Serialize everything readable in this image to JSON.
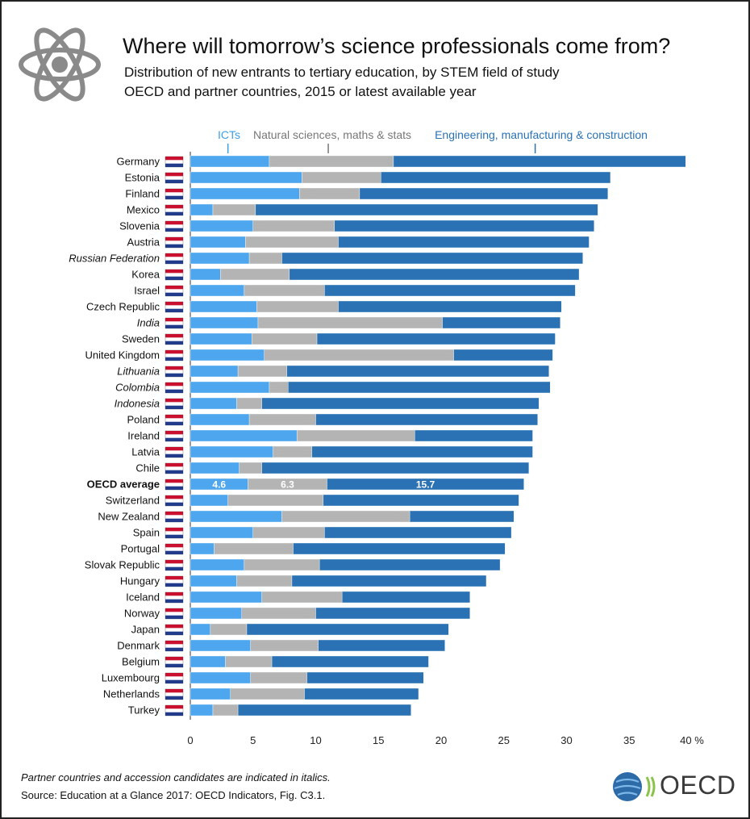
{
  "title": "Where will tomorrow’s science professionals come from?",
  "subtitle1": "Distribution of new entrants to tertiary education, by STEM field of study",
  "subtitle2": "OECD and partner countries, 2015 or latest available year",
  "footnote": "Partner countries and accession candidates are indicated in italics.",
  "source": "Source: Education at a Glance 2017: OECD Indicators, Fig. C3.1.",
  "logo_text": "OECD",
  "colors": {
    "ict": "#4da6ee",
    "nat": "#b4b4b4",
    "eng": "#2a72b4",
    "ict_label": "#3d9fe8",
    "nat_label": "#777777",
    "eng_label": "#2a72b4"
  },
  "chart_data": {
    "type": "bar",
    "orientation": "horizontal",
    "stacked": true,
    "xlim": [
      0,
      40
    ],
    "xticks": [
      "0",
      "5",
      "10",
      "15",
      "20",
      "25",
      "30",
      "35",
      "40 %"
    ],
    "legend": [
      "ICTs",
      "Natural sciences, maths & stats",
      "Engineering, manufacturing & construction"
    ],
    "legend_position": "top",
    "highlight_labels": [
      "4.6",
      "6.3",
      "15.7"
    ],
    "categories": [
      "Germany",
      "Estonia",
      "Finland",
      "Mexico",
      "Slovenia",
      "Austria",
      "Russian Federation",
      "Korea",
      "Israel",
      "Czech Republic",
      "India",
      "Sweden",
      "United Kingdom",
      "Lithuania",
      "Colombia",
      "Indonesia",
      "Poland",
      "Ireland",
      "Latvia",
      "Chile",
      "OECD average",
      "Switzerland",
      "New Zealand",
      "Spain",
      "Portugal",
      "Slovak Republic",
      "Hungary",
      "Iceland",
      "Norway",
      "Japan",
      "Denmark",
      "Belgium",
      "Luxembourg",
      "Netherlands",
      "Turkey"
    ],
    "italic": [
      "Russian Federation",
      "India",
      "Lithuania",
      "Colombia",
      "Indonesia"
    ],
    "bold": [
      "OECD average"
    ],
    "series": [
      {
        "name": "ICTs",
        "values": [
          6.3,
          8.9,
          8.7,
          1.8,
          5.0,
          4.4,
          4.7,
          2.4,
          4.3,
          5.3,
          5.4,
          4.9,
          5.9,
          3.8,
          6.3,
          3.7,
          4.7,
          8.5,
          6.6,
          3.9,
          4.6,
          3.0,
          7.3,
          5.0,
          1.9,
          4.3,
          3.7,
          5.7,
          4.1,
          1.6,
          4.8,
          2.8,
          4.8,
          3.2,
          1.8
        ]
      },
      {
        "name": "Natural sciences, maths & stats",
        "values": [
          9.9,
          6.3,
          4.8,
          3.4,
          6.5,
          7.4,
          2.6,
          5.5,
          6.4,
          6.5,
          14.7,
          5.2,
          15.1,
          3.9,
          1.5,
          2.0,
          5.3,
          9.4,
          3.1,
          1.8,
          6.3,
          7.6,
          10.2,
          5.7,
          6.3,
          6.0,
          4.4,
          6.4,
          5.9,
          2.9,
          5.4,
          3.7,
          4.5,
          5.9,
          2.0
        ]
      },
      {
        "name": "Engineering, manufacturing & construction",
        "values": [
          23.3,
          18.3,
          19.8,
          27.3,
          20.7,
          20.0,
          24.0,
          23.1,
          20.0,
          17.8,
          9.4,
          19.0,
          7.9,
          20.9,
          20.9,
          22.1,
          17.7,
          9.4,
          17.6,
          21.3,
          15.7,
          15.6,
          8.3,
          14.9,
          16.9,
          14.4,
          15.5,
          10.2,
          12.3,
          16.1,
          10.1,
          12.5,
          9.3,
          9.1,
          13.8
        ]
      }
    ]
  }
}
